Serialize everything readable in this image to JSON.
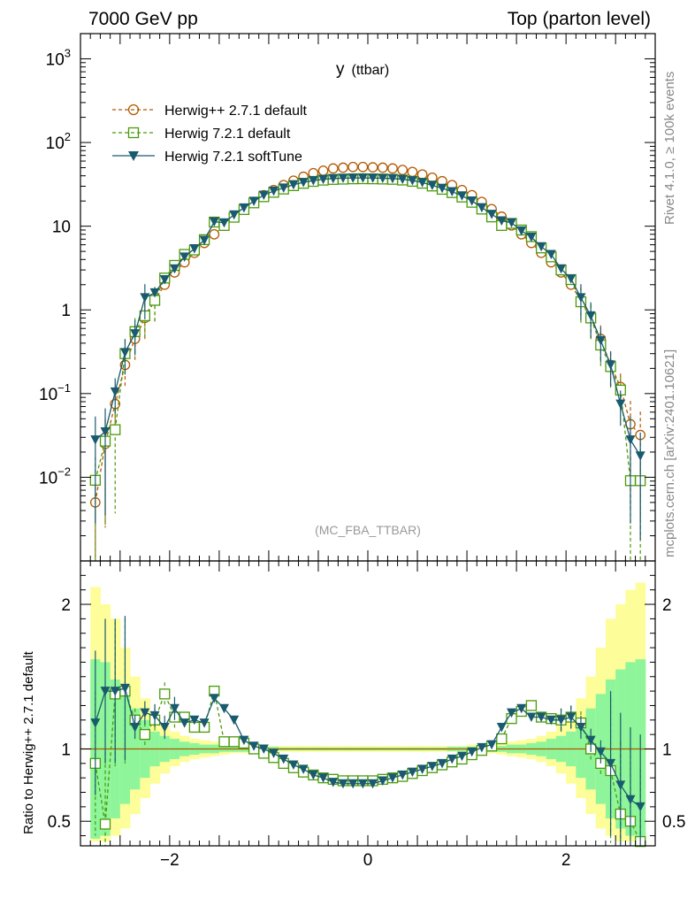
{
  "header": {
    "left_title": "7000 GeV pp",
    "right_title": "Top (parton level)",
    "side_rivet": "Rivet 4.1.0, ≥ 100k events",
    "side_mcplots": "mcplots.cern.ch [arXiv:2401.10621]"
  },
  "plot_label": {
    "main": "y",
    "sub": "(ttbar)"
  },
  "analysis_tag": "(MC_FBA_TTBAR)",
  "ratio_ylabel": "Ratio to Herwig++ 2.7.1 default",
  "legend": [
    {
      "label": "Herwig++ 2.7.1 default"
    },
    {
      "label": "Herwig 7.2.1 default"
    },
    {
      "label": "Herwig 7.2.1 softTune"
    }
  ],
  "axis_labels": {
    "main_y": [
      {
        "base": "10",
        "exp": "3"
      },
      {
        "base": "10",
        "exp": "2"
      },
      {
        "base": "10",
        "exp": ""
      },
      {
        "base": "1",
        "exp": ""
      },
      {
        "base": "10",
        "exp": "−1"
      },
      {
        "base": "10",
        "exp": "−2"
      }
    ],
    "ratio_y": [
      "2",
      "1",
      "0.5"
    ],
    "x": [
      "−2",
      "0",
      "2"
    ]
  },
  "chart_data": {
    "type": "line",
    "title": "y (ttbar)",
    "xlabel": "",
    "ylabel": "",
    "xlim": [
      -2.9,
      2.9
    ],
    "ylim": [
      0.001,
      2000
    ],
    "yscale": "log",
    "ratio_ylim": [
      0.33,
      2.3
    ],
    "colors": {
      "herwigpp": "#b35900",
      "h7default": "#4a9a0a",
      "h7soft": "#1a5a6e",
      "band_yellow": "#fdfd9a",
      "band_green": "#8ef59a"
    },
    "x": [
      -2.75,
      -2.65,
      -2.55,
      -2.45,
      -2.35,
      -2.25,
      -2.15,
      -2.05,
      -1.95,
      -1.85,
      -1.75,
      -1.65,
      -1.55,
      -1.45,
      -1.35,
      -1.25,
      -1.15,
      -1.05,
      -0.95,
      -0.85,
      -0.75,
      -0.65,
      -0.55,
      -0.45,
      -0.35,
      -0.25,
      -0.15,
      -0.05,
      0.05,
      0.15,
      0.25,
      0.35,
      0.45,
      0.55,
      0.65,
      0.75,
      0.85,
      0.95,
      1.05,
      1.15,
      1.25,
      1.35,
      1.45,
      1.55,
      1.65,
      1.75,
      1.85,
      1.95,
      2.05,
      2.15,
      2.25,
      2.35,
      2.45,
      2.55,
      2.65,
      2.75
    ],
    "series": [
      {
        "name": "Herwig++ 2.7.1 default",
        "values": [
          0.005,
          0.025,
          0.075,
          0.22,
          0.45,
          0.8,
          1.3,
          2.0,
          2.8,
          3.7,
          4.8,
          6.3,
          8.0,
          10.2,
          13.0,
          16.0,
          19.5,
          23.5,
          27.0,
          31.0,
          35.0,
          39.0,
          43.0,
          46.0,
          49.0,
          50.0,
          51.0,
          51.0,
          50.5,
          50.0,
          49.0,
          47.0,
          44.5,
          41.5,
          38.0,
          34.5,
          31.0,
          27.0,
          23.5,
          19.5,
          16.0,
          13.0,
          10.2,
          8.0,
          6.3,
          4.8,
          3.7,
          2.8,
          2.0,
          1.3,
          0.8,
          0.45,
          0.22,
          0.12,
          0.043,
          0.032
        ]
      },
      {
        "name": "Herwig 7.2.1 default",
        "values": [
          0.0092,
          0.027,
          0.037,
          0.3,
          0.55,
          0.85,
          1.3,
          2.4,
          3.4,
          4.6,
          5.2,
          6.9,
          11.2,
          10.2,
          12.8,
          15.8,
          19.0,
          22.5,
          25.4,
          27.8,
          30.5,
          32.5,
          34.3,
          35.5,
          36.2,
          36.5,
          36.8,
          36.9,
          36.8,
          36.6,
          36.3,
          35.6,
          34.4,
          32.6,
          30.2,
          27.6,
          25.2,
          22.3,
          19.3,
          16.0,
          12.9,
          10.2,
          10.8,
          9.0,
          7.5,
          5.5,
          4.3,
          3.0,
          2.3,
          1.25,
          0.8,
          0.38,
          0.21,
          0.11,
          0.0091,
          0.0091
        ]
      },
      {
        "name": "Herwig 7.2.1 softTune",
        "values": [
          0.028,
          0.035,
          0.105,
          0.31,
          0.52,
          1.4,
          1.6,
          2.3,
          3.1,
          4.3,
          5.4,
          6.8,
          11.3,
          11.0,
          13.7,
          16.6,
          19.9,
          23.5,
          26.3,
          28.7,
          31.3,
          33.4,
          35.1,
          36.4,
          37.1,
          37.5,
          37.6,
          37.7,
          37.6,
          37.4,
          37.1,
          36.4,
          35.1,
          33.3,
          30.8,
          28.4,
          25.9,
          23.1,
          20.1,
          16.7,
          13.9,
          11.6,
          11.0,
          8.8,
          7.4,
          5.7,
          4.6,
          3.1,
          2.35,
          1.4,
          0.85,
          0.43,
          0.22,
          0.075,
          0.028,
          0.018
        ]
      }
    ],
    "ratios": [
      {
        "name": "Herwig 7.2.1 default",
        "values": [
          0.9,
          0.48,
          1.38,
          1.4,
          1.2,
          1.1,
          1.2,
          1.38,
          1.22,
          1.22,
          1.15,
          1.15,
          1.4,
          1.05,
          1.05,
          1.04,
          1.0,
          0.97,
          0.94,
          0.9,
          0.87,
          0.84,
          0.82,
          0.8,
          0.79,
          0.78,
          0.78,
          0.78,
          0.78,
          0.79,
          0.8,
          0.81,
          0.83,
          0.85,
          0.87,
          0.89,
          0.91,
          0.93,
          0.96,
          0.99,
          1.02,
          1.07,
          1.21,
          1.26,
          1.3,
          1.22,
          1.21,
          1.2,
          1.22,
          1.18,
          1.0,
          0.9,
          0.85,
          0.55,
          0.5,
          0.36
        ]
      },
      {
        "name": "Herwig 7.2.1 softTune",
        "values": [
          1.18,
          1.4,
          1.4,
          1.42,
          1.15,
          1.25,
          1.23,
          1.15,
          1.28,
          1.18,
          1.2,
          1.18,
          1.35,
          1.28,
          1.2,
          1.06,
          1.02,
          1.0,
          0.97,
          0.93,
          0.89,
          0.86,
          0.82,
          0.8,
          0.77,
          0.76,
          0.76,
          0.76,
          0.76,
          0.78,
          0.8,
          0.82,
          0.84,
          0.86,
          0.88,
          0.9,
          0.93,
          0.95,
          0.98,
          1.01,
          1.03,
          1.15,
          1.25,
          1.28,
          1.22,
          1.22,
          1.2,
          1.2,
          1.22,
          1.15,
          1.06,
          0.98,
          0.9,
          0.75,
          0.65,
          0.6
        ]
      }
    ],
    "ratio_band": {
      "green_hi": [
        1.62,
        1.6,
        1.48,
        1.38,
        1.28,
        1.2,
        1.12,
        1.09,
        1.07,
        1.05,
        1.04,
        1.03,
        1.03,
        1.02,
        1.02,
        1.02,
        1.015,
        1.015,
        1.015,
        1.01,
        1.01,
        1.01,
        1.01,
        1.01,
        1.01,
        1.01,
        1.01,
        1.01,
        1.01,
        1.01,
        1.01,
        1.01,
        1.01,
        1.01,
        1.01,
        1.01,
        1.015,
        1.015,
        1.015,
        1.02,
        1.02,
        1.02,
        1.03,
        1.03,
        1.04,
        1.05,
        1.07,
        1.09,
        1.12,
        1.2,
        1.28,
        1.38,
        1.48,
        1.55,
        1.6,
        1.62
      ],
      "green_lo": [
        0.38,
        0.4,
        0.52,
        0.62,
        0.72,
        0.8,
        0.88,
        0.91,
        0.93,
        0.95,
        0.96,
        0.97,
        0.97,
        0.98,
        0.98,
        0.98,
        0.985,
        0.985,
        0.985,
        0.99,
        0.99,
        0.99,
        0.99,
        0.99,
        0.99,
        0.99,
        0.99,
        0.99,
        0.99,
        0.99,
        0.99,
        0.99,
        0.99,
        0.99,
        0.99,
        0.99,
        0.985,
        0.985,
        0.985,
        0.98,
        0.98,
        0.98,
        0.97,
        0.97,
        0.96,
        0.95,
        0.93,
        0.91,
        0.88,
        0.8,
        0.72,
        0.62,
        0.52,
        0.45,
        0.4,
        0.38
      ],
      "yellow_hi": [
        2.12,
        2.0,
        1.9,
        1.7,
        1.5,
        1.35,
        1.22,
        1.16,
        1.12,
        1.09,
        1.07,
        1.06,
        1.05,
        1.04,
        1.03,
        1.03,
        1.03,
        1.02,
        1.02,
        1.02,
        1.02,
        1.02,
        1.02,
        1.02,
        1.02,
        1.02,
        1.02,
        1.02,
        1.02,
        1.02,
        1.02,
        1.02,
        1.02,
        1.02,
        1.02,
        1.02,
        1.02,
        1.02,
        1.03,
        1.03,
        1.03,
        1.04,
        1.05,
        1.06,
        1.07,
        1.09,
        1.12,
        1.16,
        1.22,
        1.35,
        1.5,
        1.7,
        1.9,
        2.0,
        2.1,
        2.15
      ],
      "yellow_lo": [
        0.36,
        0.36,
        0.4,
        0.45,
        0.55,
        0.66,
        0.76,
        0.83,
        0.88,
        0.91,
        0.93,
        0.94,
        0.95,
        0.96,
        0.97,
        0.97,
        0.97,
        0.98,
        0.98,
        0.98,
        0.98,
        0.98,
        0.98,
        0.98,
        0.98,
        0.98,
        0.98,
        0.98,
        0.98,
        0.98,
        0.98,
        0.98,
        0.98,
        0.98,
        0.98,
        0.98,
        0.98,
        0.98,
        0.97,
        0.97,
        0.97,
        0.96,
        0.95,
        0.94,
        0.93,
        0.91,
        0.88,
        0.83,
        0.76,
        0.66,
        0.55,
        0.45,
        0.4,
        0.36,
        0.36,
        0.36
      ]
    }
  }
}
